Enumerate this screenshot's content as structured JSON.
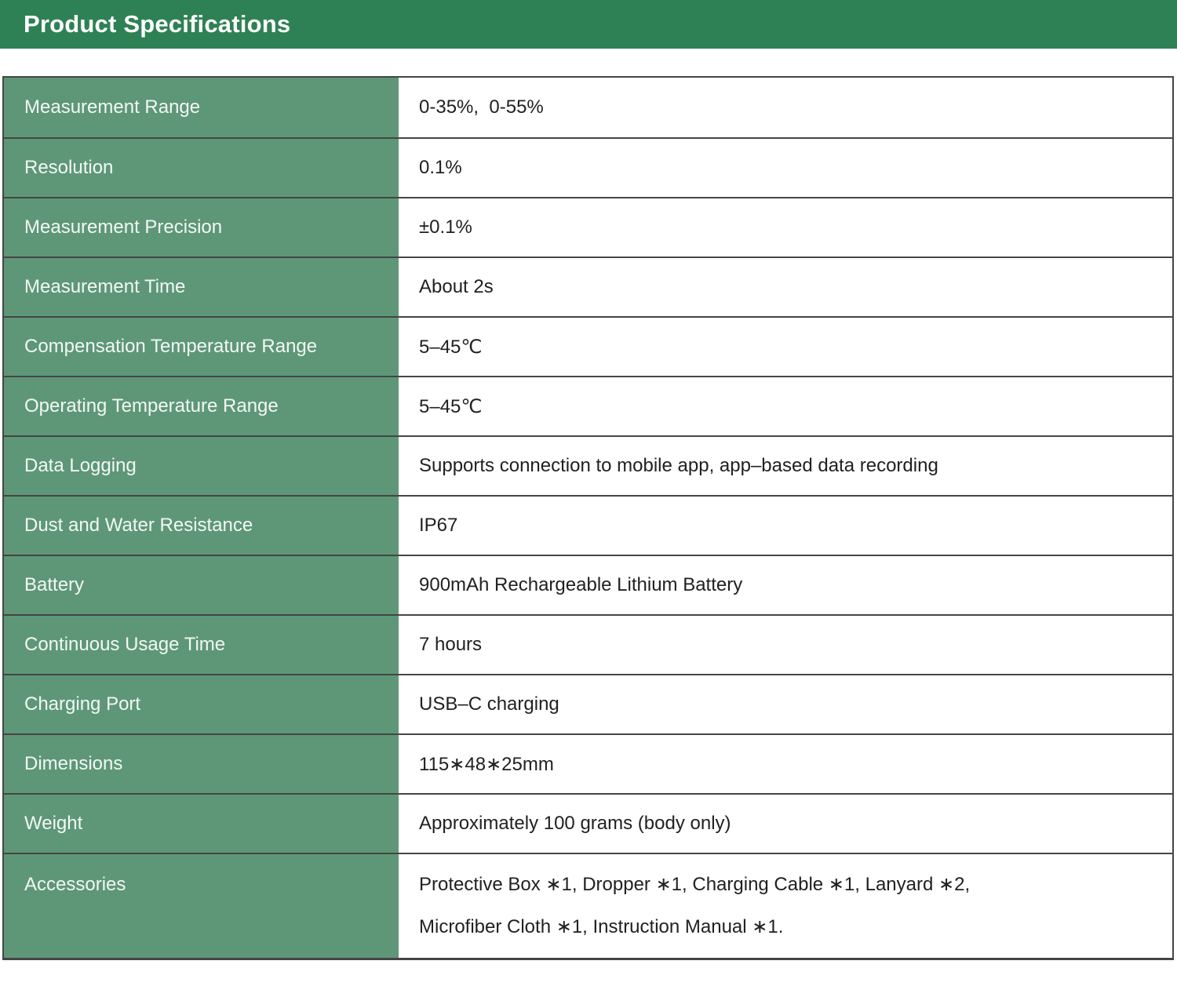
{
  "header": {
    "title": "Product Specifications"
  },
  "colors": {
    "header_bg": "#2E8155",
    "label_bg": "#5E9778",
    "divider": "#454545",
    "label_text": "#F2F8F4",
    "value_text": "#212121"
  },
  "table": {
    "rows": [
      {
        "label": "Measurement Range",
        "value": "0-35%,  0-55%"
      },
      {
        "label": "Resolution",
        "value": "0.1%"
      },
      {
        "label": "Measurement Precision",
        "value": "±0.1%"
      },
      {
        "label": "Measurement Time",
        "value": "About 2s"
      },
      {
        "label": "Compensation Temperature Range",
        "value": "5–45℃"
      },
      {
        "label": "Operating Temperature Range",
        "value": "5–45℃"
      },
      {
        "label": "Data Logging",
        "value": "Supports connection to mobile app, app–based data recording"
      },
      {
        "label": "Dust and Water Resistance",
        "value": "IP67"
      },
      {
        "label": "Battery",
        "value": "900mAh Rechargeable Lithium Battery"
      },
      {
        "label": "Continuous Usage Time",
        "value": "7 hours"
      },
      {
        "label": "Charging Port",
        "value": "USB–C charging"
      },
      {
        "label": "Dimensions",
        "value": "115∗48∗25mm"
      },
      {
        "label": "Weight",
        "value": "Approximately 100 grams (body only)"
      },
      {
        "label": "Accessories",
        "value": "Protective Box ∗1, Dropper ∗1, Charging Cable ∗1, Lanyard ∗2,\nMicrofiber Cloth ∗1, Instruction Manual ∗1."
      }
    ]
  }
}
